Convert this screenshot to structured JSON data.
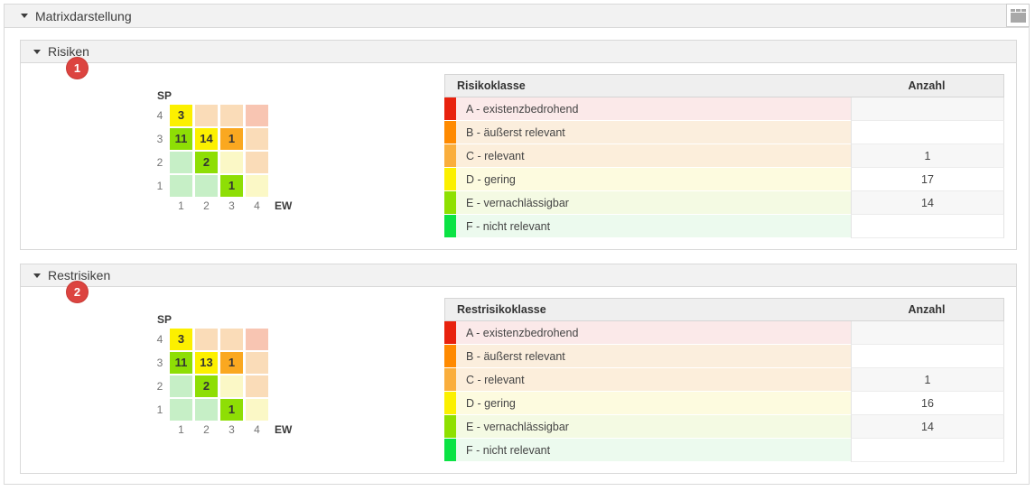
{
  "app": {
    "title": "Matrixdarstellung"
  },
  "sections": [
    {
      "title": "Risiken",
      "badge": "1",
      "matrix": {
        "y_axis": "SP",
        "x_axis": "EW",
        "y_ticks": [
          "4",
          "3",
          "2",
          "1"
        ],
        "x_ticks": [
          "1",
          "2",
          "3",
          "4"
        ],
        "cells": [
          {
            "v": "3",
            "bg": "#fcf000"
          },
          {
            "v": "",
            "bg": "#fadcb8"
          },
          {
            "v": "",
            "bg": "#fadcb8"
          },
          {
            "v": "",
            "bg": "#f8c5b2"
          },
          {
            "v": "11",
            "bg": "#8ede05"
          },
          {
            "v": "14",
            "bg": "#fcf000"
          },
          {
            "v": "1",
            "bg": "#faa820"
          },
          {
            "v": "",
            "bg": "#fadcb8"
          },
          {
            "v": "",
            "bg": "#c6efc6"
          },
          {
            "v": "2",
            "bg": "#8ede05"
          },
          {
            "v": "",
            "bg": "#fbf8c6"
          },
          {
            "v": "",
            "bg": "#fadcb8"
          },
          {
            "v": "",
            "bg": "#c6efc6"
          },
          {
            "v": "",
            "bg": "#c6efc6"
          },
          {
            "v": "1",
            "bg": "#8ede05"
          },
          {
            "v": "",
            "bg": "#fbf8c6"
          }
        ]
      },
      "table": {
        "class_header": "Risikoklasse",
        "count_header": "Anzahl",
        "rows": [
          {
            "label": "A - existenzbedrohend",
            "count": "",
            "color": "#e8220e",
            "bg": "#fbe9e9"
          },
          {
            "label": "B - äußerst relevant",
            "count": "",
            "color": "#ff8a00",
            "bg": "#fbeedd"
          },
          {
            "label": "C - relevant",
            "count": "1",
            "color": "#faae3c",
            "bg": "#fceedb"
          },
          {
            "label": "D - gering",
            "count": "17",
            "color": "#fbf000",
            "bg": "#fdfbdf"
          },
          {
            "label": "E - vernachlässigbar",
            "count": "14",
            "color": "#8ee000",
            "bg": "#f4fae3"
          },
          {
            "label": "F - nicht relevant",
            "count": "",
            "color": "#0be344",
            "bg": "#ecfaee"
          }
        ]
      }
    },
    {
      "title": "Restrisiken",
      "badge": "2",
      "matrix": {
        "y_axis": "SP",
        "x_axis": "EW",
        "y_ticks": [
          "4",
          "3",
          "2",
          "1"
        ],
        "x_ticks": [
          "1",
          "2",
          "3",
          "4"
        ],
        "cells": [
          {
            "v": "3",
            "bg": "#fcf000"
          },
          {
            "v": "",
            "bg": "#fadcb8"
          },
          {
            "v": "",
            "bg": "#fadcb8"
          },
          {
            "v": "",
            "bg": "#f8c5b2"
          },
          {
            "v": "11",
            "bg": "#8ede05"
          },
          {
            "v": "13",
            "bg": "#fcf000"
          },
          {
            "v": "1",
            "bg": "#faa820"
          },
          {
            "v": "",
            "bg": "#fadcb8"
          },
          {
            "v": "",
            "bg": "#c6efc6"
          },
          {
            "v": "2",
            "bg": "#8ede05"
          },
          {
            "v": "",
            "bg": "#fbf8c6"
          },
          {
            "v": "",
            "bg": "#fadcb8"
          },
          {
            "v": "",
            "bg": "#c6efc6"
          },
          {
            "v": "",
            "bg": "#c6efc6"
          },
          {
            "v": "1",
            "bg": "#8ede05"
          },
          {
            "v": "",
            "bg": "#fbf8c6"
          }
        ]
      },
      "table": {
        "class_header": "Restrisikoklasse",
        "count_header": "Anzahl",
        "rows": [
          {
            "label": "A - existenzbedrohend",
            "count": "",
            "color": "#e8220e",
            "bg": "#fbe9e9"
          },
          {
            "label": "B - äußerst relevant",
            "count": "",
            "color": "#ff8a00",
            "bg": "#fbeedd"
          },
          {
            "label": "C - relevant",
            "count": "1",
            "color": "#faae3c",
            "bg": "#fceedb"
          },
          {
            "label": "D - gering",
            "count": "16",
            "color": "#fbf000",
            "bg": "#fdfbdf"
          },
          {
            "label": "E - vernachlässigbar",
            "count": "14",
            "color": "#8ee000",
            "bg": "#f4fae3"
          },
          {
            "label": "F - nicht relevant",
            "count": "",
            "color": "#0be344",
            "bg": "#ecfaee"
          }
        ]
      }
    }
  ]
}
